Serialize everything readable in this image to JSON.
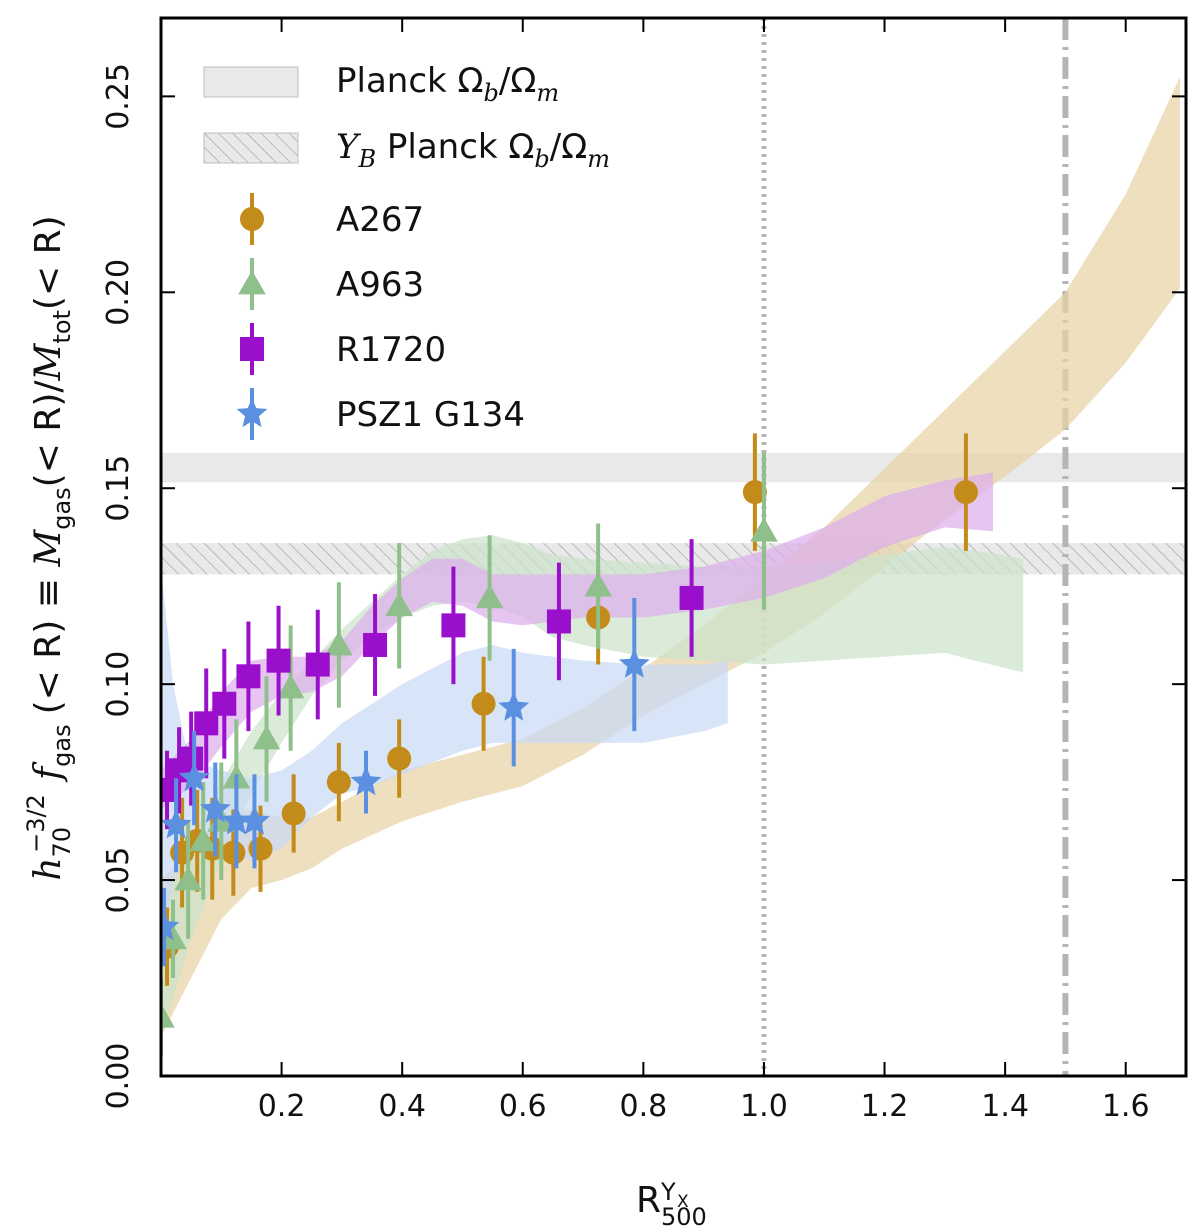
{
  "chart_data": {
    "type": "scatter",
    "xlabel": "R",
    "xlabel_sub": "500",
    "xlabel_sup_main": "Y",
    "xlabel_sup_sub": "X",
    "ylabel": {
      "prefix": "h",
      "prefix_sub": "70",
      "prefix_sup": "−3/2",
      "f": "f",
      "f_sub": "gas",
      "def1": "(< R) ≡ ",
      "M1": "M",
      "M1_sub": "gas",
      "def2": "(< R)/",
      "M2": "M",
      "M2_sub": "tot",
      "def3": "(< R)"
    },
    "xlim": [
      0.0,
      1.7
    ],
    "ylim": [
      0.0,
      0.27
    ],
    "xticks": [
      0.2,
      0.4,
      0.6,
      0.8,
      1.0,
      1.2,
      1.4,
      1.6
    ],
    "xtick_labels": [
      "0.2",
      "0.4",
      "0.6",
      "0.8",
      "1.0",
      "1.2",
      "1.4",
      "1.6"
    ],
    "yticks": [
      0.0,
      0.05,
      0.1,
      0.15,
      0.2,
      0.25
    ],
    "ytick_labels": [
      "0.00",
      "0.05",
      "0.10",
      "0.15",
      "0.20",
      "0.25"
    ],
    "vlines": [
      {
        "x": 1.0,
        "style": "dotted"
      },
      {
        "x": 1.5,
        "style": "dashdot"
      }
    ],
    "hbands": [
      {
        "name": "Planck",
        "y0": 0.1515,
        "y1": 0.159,
        "style": "solid"
      },
      {
        "name": "YB Planck",
        "y0": 0.128,
        "y1": 0.136,
        "style": "hatched"
      }
    ],
    "legend": {
      "position": "top-left",
      "planck_label": "Planck Ω",
      "planck_sub_b": "b",
      "planck_slash": "/Ω",
      "planck_sub_m": "m",
      "yb_label": "Y",
      "yb_sub": "B",
      "yb_rest": " Planck Ω",
      "yb_sub_b": "b",
      "yb_slash": "/Ω",
      "yb_sub_m": "m"
    },
    "series": [
      {
        "name": "A267",
        "color": "#c38b1a",
        "band_color": "#e8d3a6",
        "marker": "circle",
        "x": [
          0.01,
          0.035,
          0.06,
          0.085,
          0.12,
          0.165,
          0.22,
          0.295,
          0.395,
          0.535,
          0.725,
          0.985,
          1.335
        ],
        "y": [
          0.033,
          0.057,
          0.06,
          0.058,
          0.057,
          0.058,
          0.067,
          0.075,
          0.081,
          0.095,
          0.117,
          0.149,
          0.149
        ],
        "yerr": [
          0.01,
          0.014,
          0.013,
          0.013,
          0.011,
          0.011,
          0.01,
          0.01,
          0.01,
          0.012,
          0.012,
          0.015,
          0.015
        ],
        "band_x": [
          0.0,
          0.05,
          0.1,
          0.15,
          0.2,
          0.25,
          0.3,
          0.4,
          0.5,
          0.6,
          0.7,
          0.8,
          0.9,
          1.0,
          1.1,
          1.2,
          1.3,
          1.4,
          1.5,
          1.6,
          1.69
        ],
        "band_lo": [
          0.01,
          0.025,
          0.04,
          0.048,
          0.05,
          0.053,
          0.058,
          0.065,
          0.07,
          0.074,
          0.082,
          0.092,
          0.1,
          0.108,
          0.118,
          0.13,
          0.142,
          0.153,
          0.165,
          0.182,
          0.201
        ],
        "band_hi": [
          0.05,
          0.058,
          0.066,
          0.068,
          0.066,
          0.066,
          0.07,
          0.078,
          0.082,
          0.086,
          0.094,
          0.104,
          0.115,
          0.127,
          0.14,
          0.155,
          0.17,
          0.185,
          0.2,
          0.225,
          0.255
        ]
      },
      {
        "name": "A963",
        "color": "#8fbf8a",
        "band_color": "#cde3cb",
        "marker": "triangle",
        "x": [
          0.0,
          0.02,
          0.045,
          0.07,
          0.1,
          0.125,
          0.175,
          0.215,
          0.295,
          0.395,
          0.545,
          0.725,
          1.0
        ],
        "y": [
          0.015,
          0.035,
          0.05,
          0.06,
          0.065,
          0.076,
          0.086,
          0.099,
          0.11,
          0.12,
          0.122,
          0.125,
          0.139
        ],
        "yerr": [
          0.01,
          0.01,
          0.015,
          0.015,
          0.015,
          0.015,
          0.016,
          0.016,
          0.016,
          0.016,
          0.016,
          0.016,
          0.02
        ],
        "band_x": [
          0.0,
          0.05,
          0.1,
          0.15,
          0.2,
          0.25,
          0.3,
          0.35,
          0.4,
          0.45,
          0.5,
          0.55,
          0.6,
          0.65,
          0.7,
          0.8,
          0.9,
          1.0,
          1.1,
          1.2,
          1.3,
          1.35,
          1.43
        ],
        "band_lo": [
          0.01,
          0.035,
          0.055,
          0.072,
          0.085,
          0.097,
          0.106,
          0.112,
          0.117,
          0.12,
          0.121,
          0.12,
          0.117,
          0.112,
          0.11,
          0.107,
          0.106,
          0.105,
          0.106,
          0.107,
          0.108,
          0.106,
          0.103
        ],
        "band_hi": [
          0.045,
          0.06,
          0.075,
          0.088,
          0.098,
          0.106,
          0.114,
          0.121,
          0.128,
          0.134,
          0.137,
          0.138,
          0.136,
          0.133,
          0.132,
          0.131,
          0.13,
          0.13,
          0.131,
          0.133,
          0.135,
          0.134,
          0.132
        ]
      },
      {
        "name": "R1720",
        "color": "#9a0fcc",
        "band_color": "#dcaeec",
        "marker": "square",
        "x": [
          0.01,
          0.03,
          0.05,
          0.075,
          0.105,
          0.145,
          0.195,
          0.26,
          0.355,
          0.485,
          0.66,
          0.88
        ],
        "y": [
          0.073,
          0.078,
          0.081,
          0.09,
          0.095,
          0.102,
          0.106,
          0.105,
          0.11,
          0.115,
          0.116,
          0.122
        ],
        "yerr": [
          0.01,
          0.011,
          0.012,
          0.014,
          0.014,
          0.014,
          0.014,
          0.014,
          0.013,
          0.015,
          0.015,
          0.015
        ],
        "band_x": [
          0.0,
          0.05,
          0.1,
          0.15,
          0.2,
          0.25,
          0.3,
          0.35,
          0.4,
          0.45,
          0.5,
          0.55,
          0.6,
          0.7,
          0.8,
          0.9,
          1.0,
          1.1,
          1.2,
          1.3,
          1.38
        ],
        "band_lo": [
          0.068,
          0.074,
          0.084,
          0.093,
          0.097,
          0.098,
          0.102,
          0.11,
          0.117,
          0.121,
          0.12,
          0.116,
          0.115,
          0.117,
          0.117,
          0.119,
          0.122,
          0.127,
          0.135,
          0.14,
          0.139
        ],
        "band_hi": [
          0.078,
          0.086,
          0.098,
          0.106,
          0.107,
          0.107,
          0.111,
          0.12,
          0.127,
          0.132,
          0.132,
          0.128,
          0.128,
          0.128,
          0.128,
          0.13,
          0.134,
          0.14,
          0.148,
          0.152,
          0.154
        ]
      },
      {
        "name": "PSZ1 G134",
        "color": "#5b8fe0",
        "band_color": "#c9daf5",
        "marker": "star",
        "x": [
          0.005,
          0.025,
          0.055,
          0.09,
          0.125,
          0.155,
          0.34,
          0.585,
          0.785
        ],
        "y": [
          0.038,
          0.064,
          0.076,
          0.068,
          0.065,
          0.065,
          0.075,
          0.094,
          0.105
        ],
        "yerr": [
          0.01,
          0.012,
          0.012,
          0.012,
          0.012,
          0.012,
          0.008,
          0.015,
          0.017
        ],
        "band_x": [
          0.0,
          0.02,
          0.04,
          0.06,
          0.1,
          0.15,
          0.2,
          0.25,
          0.3,
          0.35,
          0.4,
          0.45,
          0.5,
          0.55,
          0.6,
          0.7,
          0.8,
          0.9,
          0.94
        ],
        "band_lo": [
          0.03,
          0.05,
          0.058,
          0.06,
          0.056,
          0.055,
          0.058,
          0.066,
          0.072,
          0.074,
          0.077,
          0.08,
          0.083,
          0.085,
          0.085,
          0.085,
          0.085,
          0.088,
          0.09
        ],
        "band_hi": [
          0.13,
          0.1,
          0.085,
          0.08,
          0.078,
          0.076,
          0.078,
          0.083,
          0.09,
          0.095,
          0.1,
          0.104,
          0.108,
          0.11,
          0.108,
          0.106,
          0.105,
          0.105,
          0.106
        ]
      }
    ]
  }
}
